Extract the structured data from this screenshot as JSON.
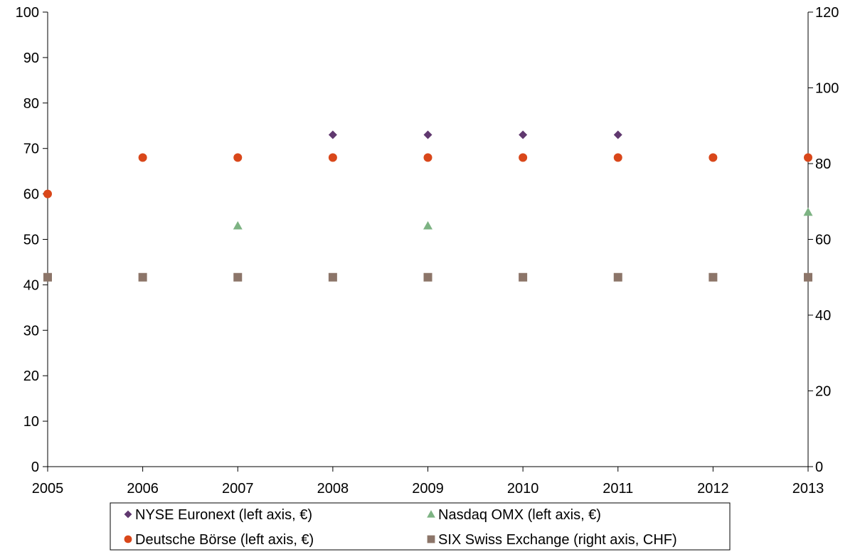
{
  "chart_data": {
    "type": "scatter",
    "x": [
      2005,
      2006,
      2007,
      2008,
      2009,
      2010,
      2011,
      2012,
      2013
    ],
    "x_ticks": [
      "2005",
      "2006",
      "2007",
      "2008",
      "2009",
      "2010",
      "2011",
      "2012",
      "2013"
    ],
    "xlim": [
      2005,
      2013
    ],
    "y_left": {
      "lim": [
        0,
        100
      ],
      "ticks": [
        "0",
        "10",
        "20",
        "30",
        "40",
        "50",
        "60",
        "70",
        "80",
        "90",
        "100"
      ]
    },
    "y_right": {
      "lim": [
        0,
        120
      ],
      "ticks": [
        "0",
        "20",
        "40",
        "60",
        "80",
        "100",
        "120"
      ]
    },
    "grid": false,
    "legend_position": "bottom",
    "series": [
      {
        "name": "NYSE Euronext (left axis, €)",
        "axis": "left",
        "marker": "diamond",
        "color": "#60386F",
        "points": [
          [
            2008,
            73
          ],
          [
            2009,
            73
          ],
          [
            2010,
            73
          ],
          [
            2011,
            73
          ]
        ]
      },
      {
        "name": "Nasdaq OMX (left axis, €)",
        "axis": "left",
        "marker": "triangle",
        "color": "#7DB383",
        "points": [
          [
            2007,
            53
          ],
          [
            2009,
            53
          ],
          [
            2013,
            56
          ]
        ]
      },
      {
        "name": "Deutsche Börse (left axis, €)",
        "axis": "left",
        "marker": "circle",
        "color": "#D9471A",
        "points": [
          [
            2005,
            60
          ],
          [
            2006,
            68
          ],
          [
            2007,
            68
          ],
          [
            2008,
            68
          ],
          [
            2009,
            68
          ],
          [
            2010,
            68
          ],
          [
            2011,
            68
          ],
          [
            2012,
            68
          ],
          [
            2013,
            68
          ]
        ]
      },
      {
        "name": "SIX Swiss Exchange (right axis, CHF)",
        "axis": "right",
        "marker": "square",
        "color": "#8C7569",
        "points": [
          [
            2005,
            50
          ],
          [
            2006,
            50
          ],
          [
            2007,
            50
          ],
          [
            2008,
            50
          ],
          [
            2009,
            50
          ],
          [
            2010,
            50
          ],
          [
            2011,
            50
          ],
          [
            2012,
            50
          ],
          [
            2013,
            50
          ]
        ]
      }
    ]
  }
}
